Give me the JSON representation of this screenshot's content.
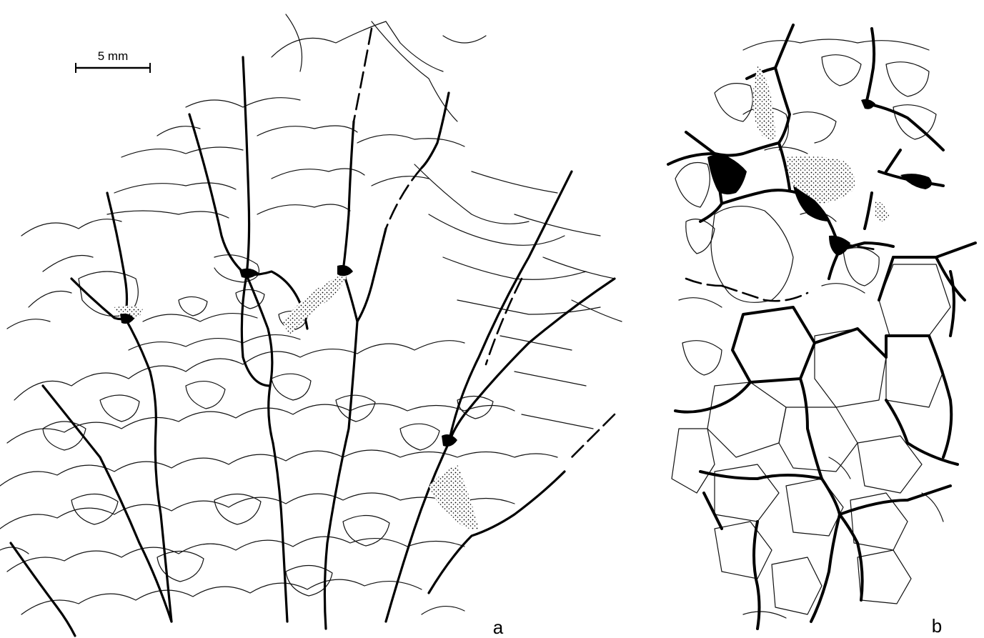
{
  "scale_bar": {
    "label": "5 mm"
  },
  "panel_a": {
    "label": "a"
  },
  "panel_b": {
    "label": "b"
  }
}
